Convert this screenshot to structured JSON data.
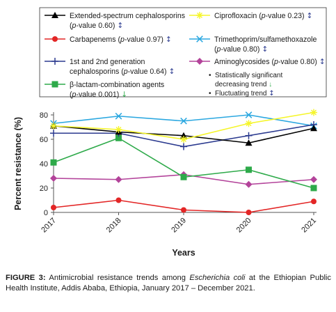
{
  "chart_data": {
    "type": "line",
    "x": [
      "2017",
      "2018",
      "2019",
      "2020",
      "2021"
    ],
    "xlabel": "Years",
    "ylabel": "Percent resistance (%)",
    "ylim": [
      0,
      80
    ],
    "yticks": [
      "0",
      "20",
      "40",
      "60",
      "80"
    ],
    "grid": false,
    "legend_position": "top",
    "series": [
      {
        "key": "esc",
        "name": "Extended-spectrum cephalosporins",
        "pvalue": "0.60",
        "trend": "↕",
        "color": "#000000",
        "marker": "triangle",
        "values": [
          71,
          66,
          63,
          57,
          69
        ]
      },
      {
        "key": "cip",
        "name": "Ciprofloxacin",
        "pvalue": "0.23",
        "trend": "↕",
        "color": "#f5f52a",
        "marker": "star",
        "values": [
          71,
          68,
          60,
          73,
          82
        ]
      },
      {
        "key": "carb",
        "name": "Carbapenems",
        "pvalue": "0.97",
        "trend": "↕",
        "color": "#e32626",
        "marker": "circle",
        "values": [
          4,
          10,
          2,
          0,
          9
        ]
      },
      {
        "key": "tms",
        "name": "Trimethoprim/sulfamethoxazole",
        "pvalue": "0.80",
        "trend": "↕",
        "color": "#2aa7e0",
        "marker": "x",
        "values": [
          73,
          79,
          75,
          80,
          71
        ]
      },
      {
        "key": "ceph12",
        "name": "1st and 2nd generation cephalosporins",
        "pvalue": "0.64",
        "trend": "↕",
        "color": "#2b3a8f",
        "marker": "plus",
        "values": [
          65,
          65,
          54,
          63,
          72
        ]
      },
      {
        "key": "amino",
        "name": "Aminoglycosides",
        "pvalue": "0.80",
        "trend": "↕",
        "color": "#b3439a",
        "marker": "diamond",
        "values": [
          28,
          27,
          31,
          23,
          27
        ]
      },
      {
        "key": "bla",
        "name": "β-lactam-combination agents",
        "pvalue": "0.001",
        "trend": "↓",
        "color": "#2eaa4a",
        "marker": "square",
        "values": [
          41,
          61,
          29,
          35,
          20
        ]
      }
    ]
  },
  "legend": {
    "pvalue_prefix": "(",
    "pvalue_italic": "p",
    "pvalue_label": "-value ",
    "pvalue_suffix": ")",
    "note_decreasing": "Statistically significant decreasing trend ↓",
    "note_fluctuating": "Fluctuating trend ↕",
    "bullet": "•"
  },
  "caption": {
    "label": "FIGURE 3:",
    "text_before": " Antimicrobial resistance trends among ",
    "organism": "Escherichia coli",
    "text_after": " at the Ethiopian Public Health Institute, Addis Ababa, Ethiopia, January 2017 – December 2021."
  }
}
